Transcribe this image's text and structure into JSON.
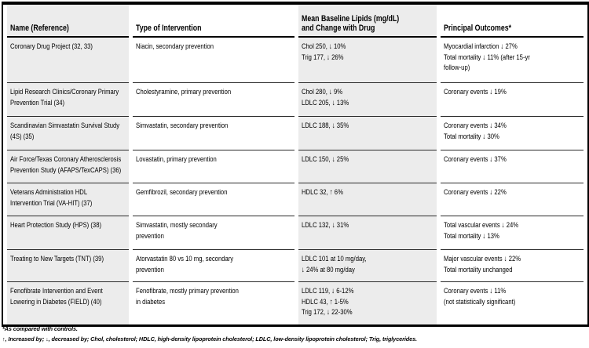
{
  "table": {
    "headers": {
      "name": "Name (Reference)",
      "intervention": "Type of Intervention",
      "lipids": "Mean Baseline Lipids (mg/dL)\nand Change with Drug",
      "outcomes": "Principal Outcomes*"
    },
    "rows": [
      {
        "name": "Coronary Drug Project (32, 33)",
        "intervention": "Niacin, secondary prevention",
        "lipids": "Chol 250, ↓ 10%\nTrig 177, ↓ 26%",
        "outcomes": "Myocardial infarction ↓ 27%\nTotal mortality ↓ 11% (after 15-yr\nfollow-up)"
      },
      {
        "name": "Lipid Research Clinics/Coronary Primary\nPrevention Trial (34)",
        "intervention": "Cholestyramine, primary prevention",
        "lipids": "Chol 280, ↓ 9%\nLDLC 205, ↓ 13%",
        "outcomes": "Coronary events ↓ 19%"
      },
      {
        "name": "Scandinavian Simvastatin Survival Study\n(4S) (35)",
        "intervention": "Simvastatin, secondary prevention",
        "lipids": "LDLC 188, ↓ 35%",
        "outcomes": "Coronary events ↓ 34%\nTotal mortality ↓ 30%"
      },
      {
        "name": "Air Force/Texas Coronary Atherosclerosis\nPrevention Study (AFAPS/TexCAPS) (36)",
        "intervention": "Lovastatin, primary prevention",
        "lipids": "LDLC 150, ↓ 25%",
        "outcomes": "Coronary events ↓ 37%"
      },
      {
        "name": "Veterans Administration HDL\nIntervention Trial (VA-HIT) (37)",
        "intervention": "Gemfibrozil, secondary prevention",
        "lipids": "HDLC 32, ↑ 6%",
        "outcomes": "Coronary events ↓ 22%"
      },
      {
        "name": "Heart Protection Study (HPS) (38)",
        "intervention": "Simvastatin, mostly secondary\nprevention",
        "lipids": "LDLC 132, ↓ 31%",
        "outcomes": "Total vascular events ↓ 24%\nTotal mortality ↓ 13%"
      },
      {
        "name": "Treating to New Targets (TNT) (39)",
        "intervention": "Atorvastatin 80 vs 10 mg, secondary\nprevention",
        "lipids": "LDLC 101 at 10 mg/day,\n↓ 24% at 80 mg/day",
        "outcomes": "Major vascular events ↓ 22%\nTotal mortality unchanged"
      },
      {
        "name": "Fenofibrate Intervention and Event\nLowering in Diabetes (FIELD) (40)",
        "intervention": "Fenofibrate, mostly primary prevention\nin diabetes",
        "lipids": "LDLC 119, ↓ 6-12%\nHDLC 43, ↑ 1-5%\nTrig 172, ↓ 22-30%",
        "outcomes": "Coronary events ↓ 11%\n(not statistically significant)"
      }
    ]
  },
  "footnotes": {
    "controls": "*As compared with controls.",
    "abbreviations": "↑, Increased by; ↓, decreased by; Chol, cholesterol; HDLC, high-density lipoprotein cholesterol; LDLC, low-density lipoprotein cholesterol; Trig, triglycerides."
  },
  "colors": {
    "stripe_gray": "#ececec",
    "border_black": "#000000",
    "row_line": "#2a2a2a"
  }
}
